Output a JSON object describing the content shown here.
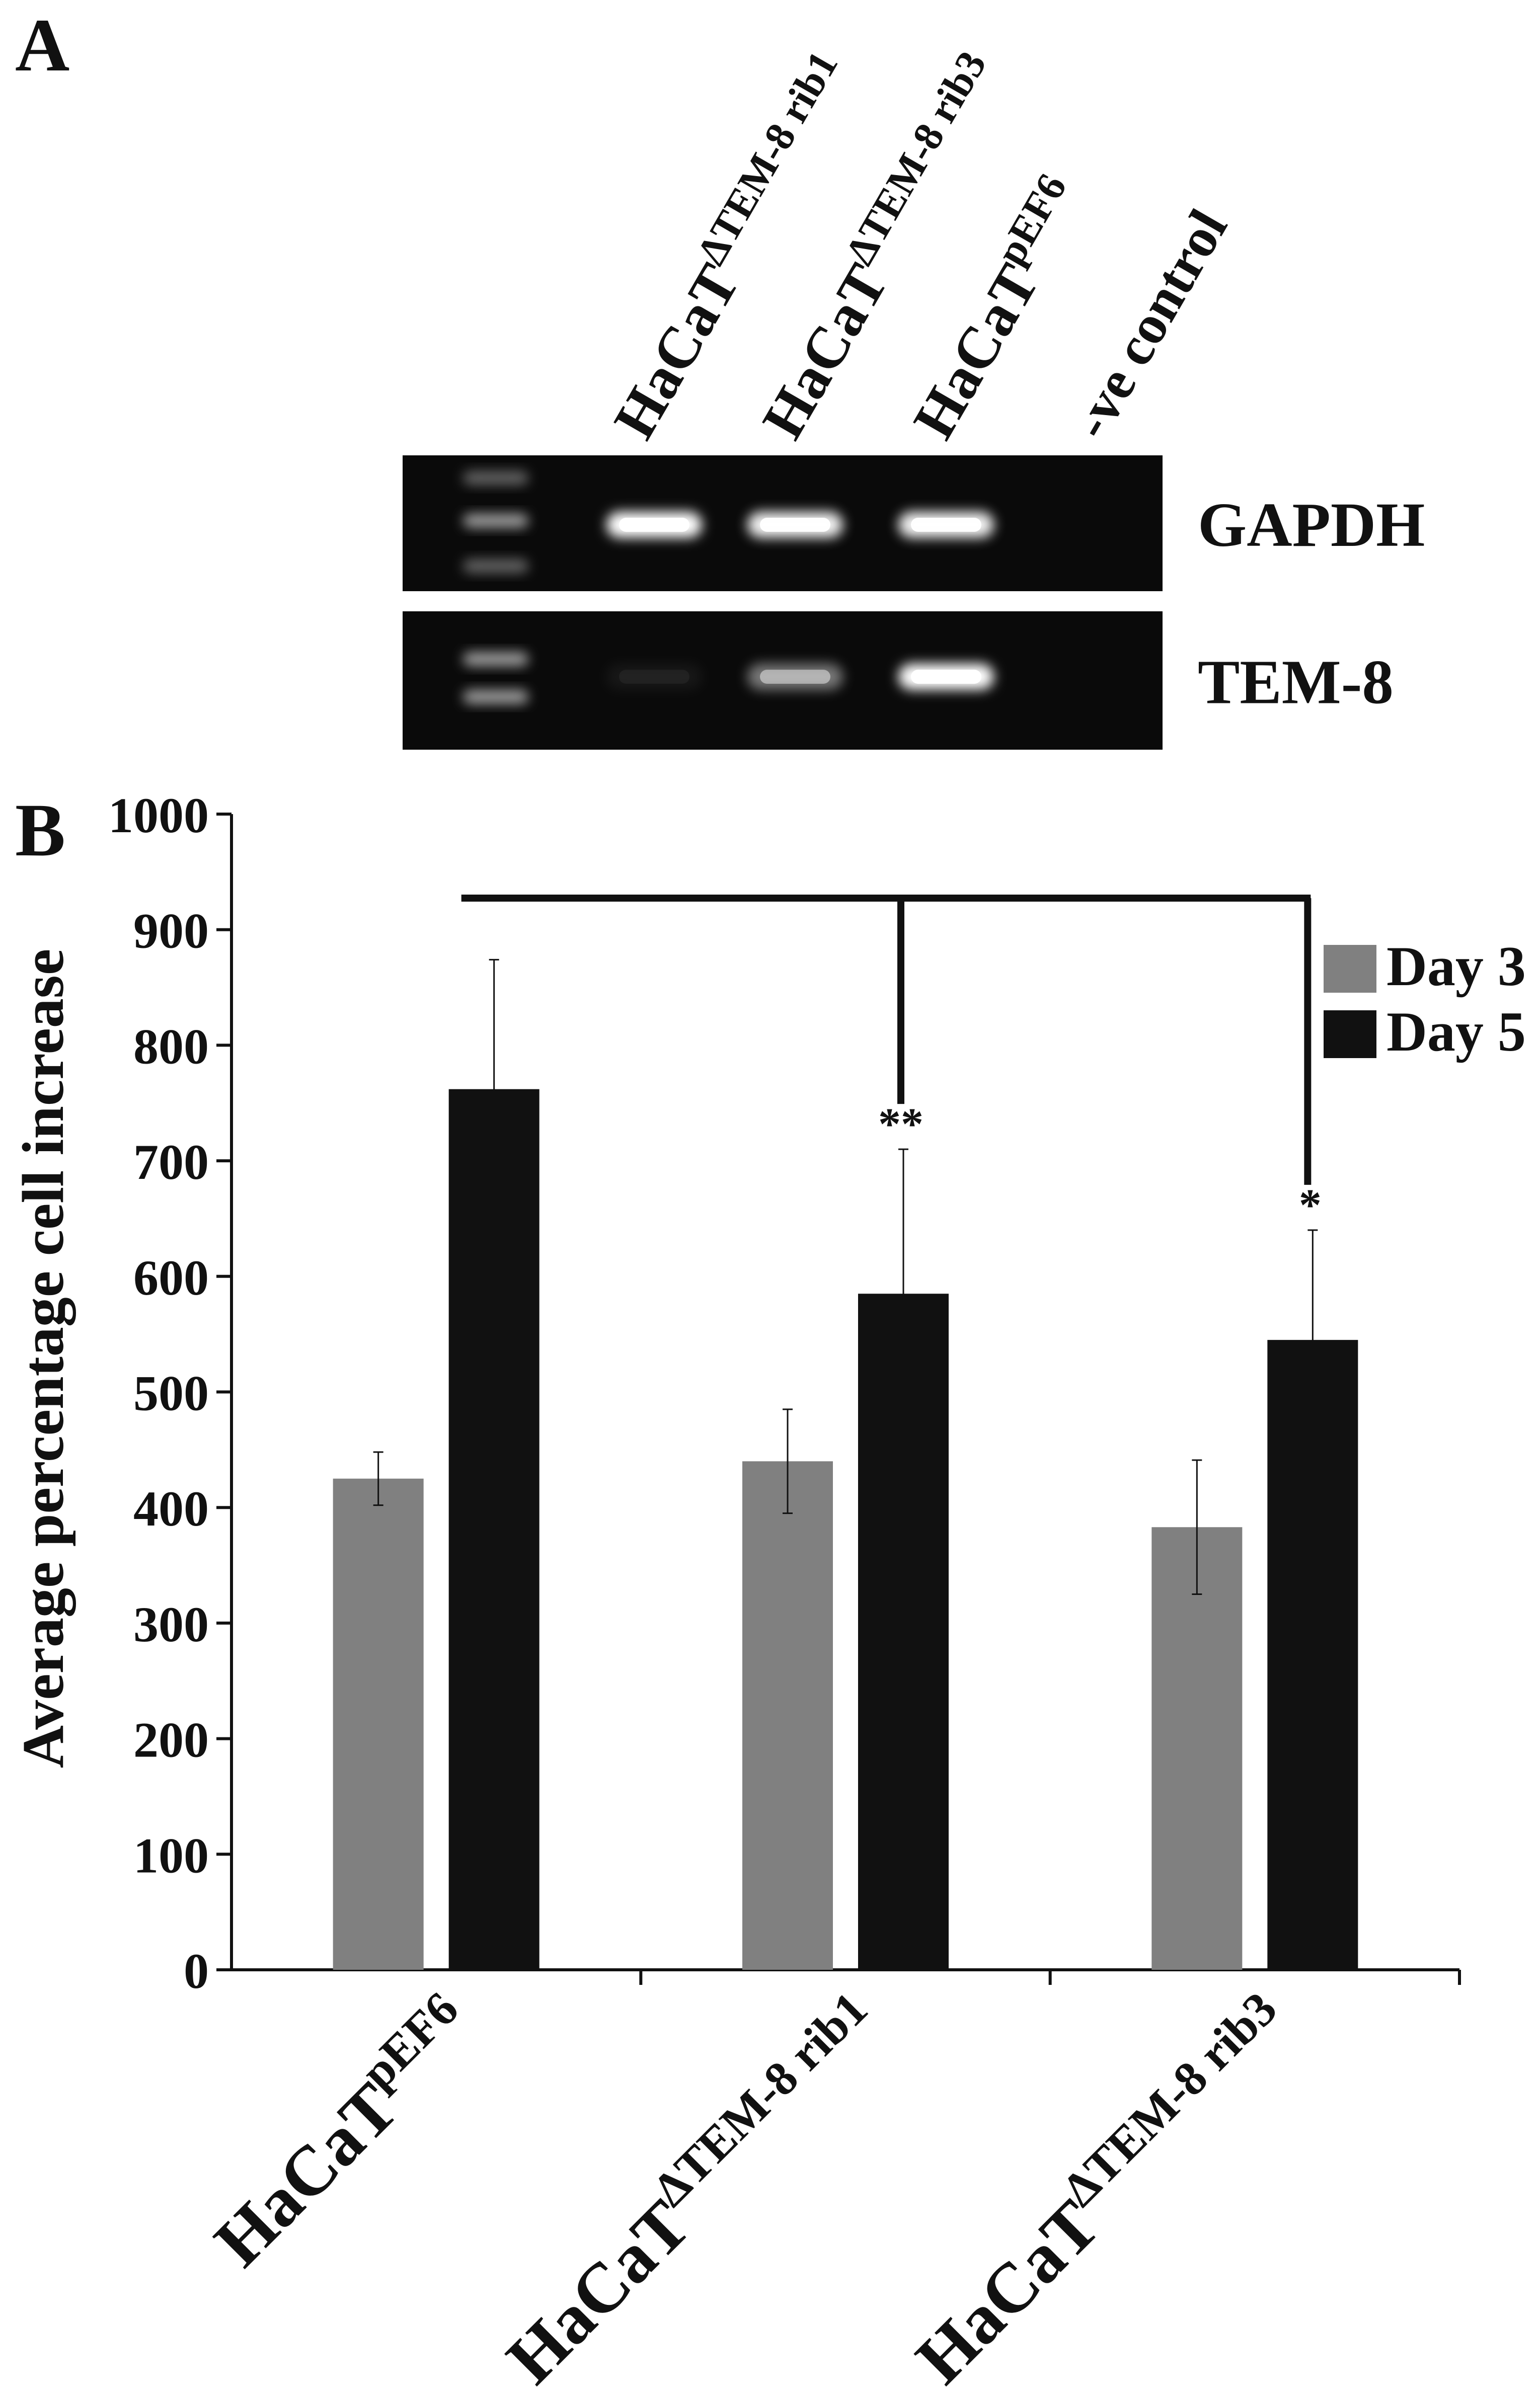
{
  "panel_a": {
    "label": "A",
    "lanes": [
      {
        "base": "HaCaT",
        "sup": "ΔTEM-8 rib1"
      },
      {
        "base": "HaCaT",
        "sup": "ΔTEM-8 rib3"
      },
      {
        "base": "HaCaT",
        "sup": "pEF6"
      },
      {
        "base": "-ve control",
        "sup": ""
      }
    ],
    "gels": [
      {
        "label": "GAPDH",
        "band_intensity": [
          1.0,
          0.95,
          0.95,
          0
        ]
      },
      {
        "label": "TEM-8",
        "band_intensity": [
          0.05,
          0.45,
          1.0,
          0
        ]
      }
    ]
  },
  "panel_b": {
    "label": "B"
  },
  "chart_data": {
    "type": "bar",
    "ylabel": "Average percentage cell increase",
    "ylim": [
      0,
      1000
    ],
    "yticks": [
      0,
      100,
      200,
      300,
      400,
      500,
      600,
      700,
      800,
      900,
      1000
    ],
    "grid": false,
    "legend_position": "top-right",
    "categories": [
      {
        "base": "HaCaT",
        "sup": "pEF6"
      },
      {
        "base": "HaCaT",
        "sup": "ΔTEM-8 rib1"
      },
      {
        "base": "HaCaT",
        "sup": "ΔTEM-8 rib3"
      }
    ],
    "series": [
      {
        "name": "Day 3",
        "color": "#808080",
        "values": [
          425,
          440,
          383
        ],
        "errors": [
          23,
          45,
          58
        ]
      },
      {
        "name": "Day 5",
        "color": "#111111",
        "values": [
          762,
          585,
          545
        ],
        "errors": [
          112,
          125,
          95
        ]
      }
    ],
    "significance": {
      "markers": [
        "",
        "**",
        "*"
      ]
    }
  }
}
